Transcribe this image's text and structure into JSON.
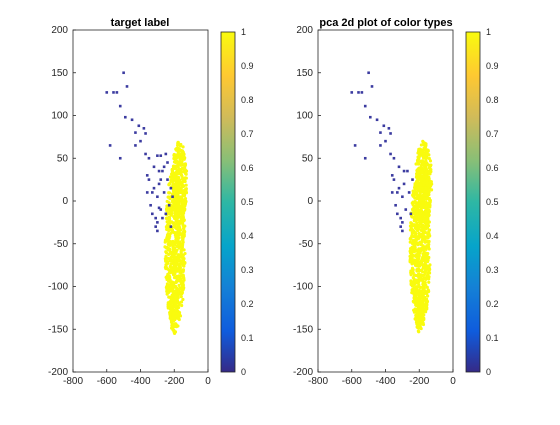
{
  "chart_data": [
    {
      "type": "scatter",
      "title": "target label",
      "xlabel": "",
      "ylabel": "",
      "xlim": [
        -800,
        0
      ],
      "ylim": [
        -200,
        200
      ],
      "x_ticks": [
        "-800",
        "-600",
        "-400",
        "-200",
        "0"
      ],
      "y_ticks": [
        "200",
        "150",
        "100",
        "50",
        "0",
        "-50",
        "-100",
        "-150",
        "-200"
      ],
      "colorbar": {
        "min": 0,
        "max": 1,
        "ticks": [
          "1",
          "0.9",
          "0.8",
          "0.7",
          "0.6",
          "0.5",
          "0.4",
          "0.3",
          "0.2",
          "0.1",
          "0"
        ]
      },
      "grid": false,
      "series": [
        {
          "value": 0,
          "color": "#3b3ba0",
          "points": [
            [
              -600,
              127
            ],
            [
              -560,
              127
            ],
            [
              -520,
              111
            ],
            [
              -520,
              50
            ],
            [
              -500,
              150
            ],
            [
              -490,
              98
            ],
            [
              -480,
              134
            ],
            [
              -450,
              95
            ],
            [
              -430,
              80
            ],
            [
              -430,
              65
            ],
            [
              -410,
              88
            ],
            [
              -400,
              70
            ],
            [
              -380,
              85
            ],
            [
              -370,
              79
            ],
            [
              -370,
              55
            ],
            [
              -360,
              30
            ],
            [
              -360,
              10
            ],
            [
              -350,
              25
            ],
            [
              -340,
              -5
            ],
            [
              -330,
              -15
            ],
            [
              -320,
              15
            ],
            [
              -310,
              -20
            ],
            [
              -300,
              5
            ],
            [
              -300,
              -25
            ],
            [
              -290,
              20
            ],
            [
              -280,
              -10
            ],
            [
              -270,
              35
            ],
            [
              -260,
              10
            ],
            [
              -250,
              -15
            ],
            [
              -240,
              25
            ],
            [
              -230,
              -5
            ],
            [
              -220,
              15
            ],
            [
              -220,
              -30
            ],
            [
              -210,
              5
            ],
            [
              -300,
              53
            ],
            [
              -280,
              53
            ],
            [
              -260,
              40
            ],
            [
              -250,
              55
            ],
            [
              -240,
              45
            ],
            [
              -580,
              65
            ],
            [
              -540,
              127
            ],
            [
              -350,
              50
            ],
            [
              -320,
              40
            ],
            [
              -290,
              35
            ],
            [
              -270,
              -20
            ],
            [
              -330,
              10
            ],
            [
              -310,
              -30
            ],
            [
              -300,
              -35
            ],
            [
              -290,
              -8
            ],
            [
              -280,
              25
            ]
          ]
        },
        {
          "value": 1,
          "color": "#f9fb0e",
          "regions": [
            {
              "cx": -195,
              "cy": -55,
              "rx": 60,
              "ry": 95
            },
            {
              "cx": -170,
              "cy": 20,
              "rx": 45,
              "ry": 50
            },
            {
              "cx": -200,
              "cy": -130,
              "rx": 25,
              "ry": 25
            }
          ]
        }
      ]
    },
    {
      "type": "scatter",
      "title": "pca 2d plot of color types",
      "xlabel": "",
      "ylabel": "",
      "xlim": [
        -800,
        0
      ],
      "ylim": [
        -200,
        200
      ],
      "x_ticks": [
        "-800",
        "-600",
        "-400",
        "-200",
        "0"
      ],
      "y_ticks": [
        "200",
        "150",
        "100",
        "50",
        "0",
        "-50",
        "-100",
        "-150",
        "-200"
      ],
      "colorbar": {
        "min": 0,
        "max": 1,
        "ticks": [
          "1",
          "0.9",
          "0.8",
          "0.7",
          "0.6",
          "0.5",
          "0.4",
          "0.3",
          "0.2",
          "0.1",
          "0"
        ]
      },
      "grid": false,
      "series": [
        {
          "value": 0,
          "color": "#3b3ba0",
          "points": [
            [
              -600,
              127
            ],
            [
              -560,
              127
            ],
            [
              -520,
              111
            ],
            [
              -520,
              50
            ],
            [
              -500,
              150
            ],
            [
              -490,
              98
            ],
            [
              -480,
              134
            ],
            [
              -450,
              95
            ],
            [
              -430,
              80
            ],
            [
              -430,
              65
            ],
            [
              -410,
              88
            ],
            [
              -400,
              70
            ],
            [
              -380,
              85
            ],
            [
              -370,
              79
            ],
            [
              -370,
              55
            ],
            [
              -360,
              30
            ],
            [
              -360,
              10
            ],
            [
              -350,
              25
            ],
            [
              -340,
              -5
            ],
            [
              -330,
              -15
            ],
            [
              -320,
              15
            ],
            [
              -310,
              -20
            ],
            [
              -300,
              5
            ],
            [
              -300,
              -25
            ],
            [
              -290,
              20
            ],
            [
              -280,
              -10
            ],
            [
              -270,
              35
            ],
            [
              -260,
              10
            ],
            [
              -250,
              -15
            ],
            [
              -240,
              25
            ],
            [
              -580,
              65
            ],
            [
              -540,
              127
            ],
            [
              -350,
              50
            ],
            [
              -320,
              40
            ],
            [
              -290,
              35
            ],
            [
              -330,
              10
            ],
            [
              -310,
              -30
            ],
            [
              -300,
              -35
            ]
          ]
        },
        {
          "value": 1,
          "color": "#f9fb0e",
          "regions": [
            {
              "cx": -195,
              "cy": -55,
              "rx": 60,
              "ry": 95
            },
            {
              "cx": -175,
              "cy": 20,
              "rx": 50,
              "ry": 50
            },
            {
              "cx": -200,
              "cy": -130,
              "rx": 25,
              "ry": 25
            }
          ]
        }
      ]
    }
  ]
}
